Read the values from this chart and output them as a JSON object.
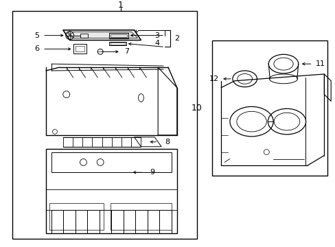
{
  "bg_color": "#ffffff",
  "line_color": "#000000",
  "fig_width": 4.89,
  "fig_height": 3.6,
  "dpi": 100,
  "font_size": 8
}
